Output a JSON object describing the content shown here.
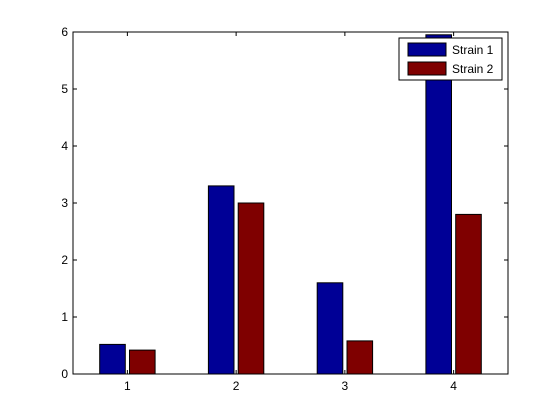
{
  "chart_data": {
    "type": "bar",
    "categories": [
      "1",
      "2",
      "3",
      "4"
    ],
    "series": [
      {
        "name": "Strain 1",
        "color": "#000096",
        "values": [
          0.52,
          3.3,
          1.6,
          5.95
        ]
      },
      {
        "name": "Strain 2",
        "color": "#7f0000",
        "values": [
          0.42,
          3.0,
          0.58,
          2.8
        ]
      }
    ],
    "ylim": [
      0,
      6
    ],
    "yticks": [
      "0",
      "1",
      "2",
      "3",
      "4",
      "5",
      "6"
    ],
    "legend_position": "top-right",
    "grid": false
  }
}
